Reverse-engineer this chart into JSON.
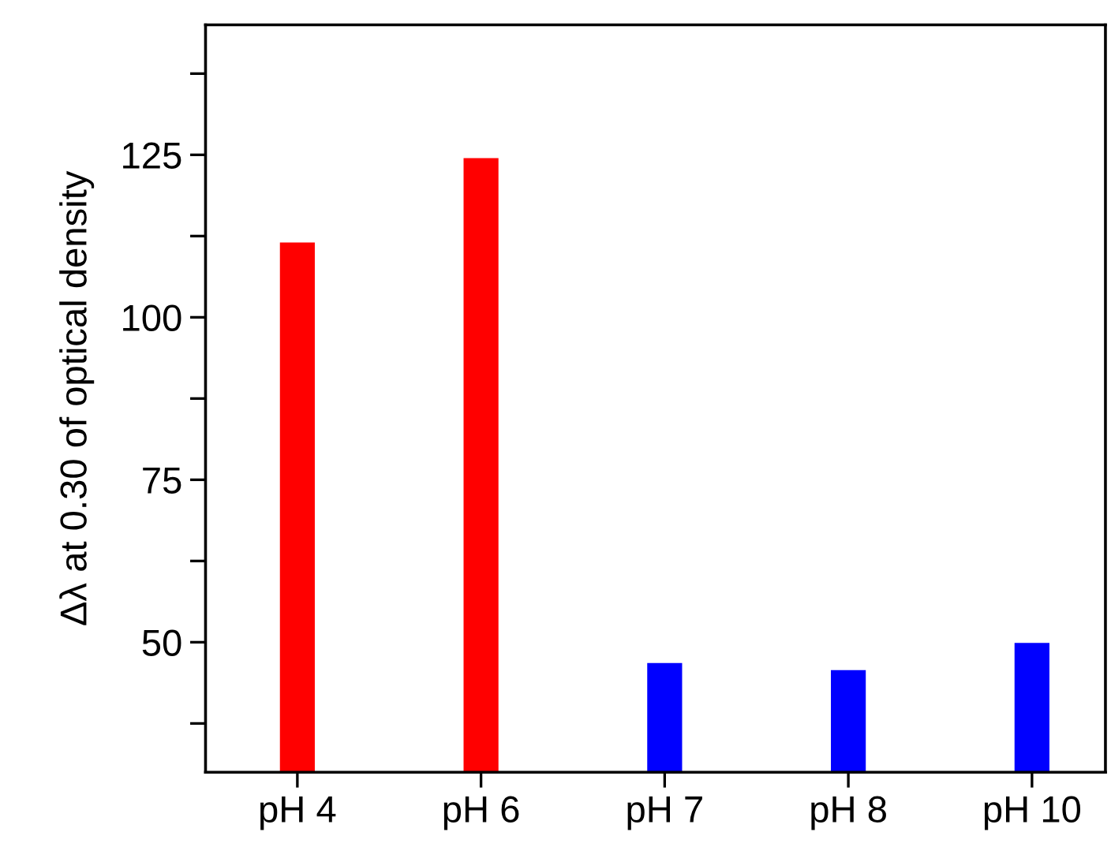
{
  "chart_data": {
    "type": "bar",
    "ylabel": "Δλ at 0.30 of optical density",
    "categories": [
      "pH 4",
      "pH 6",
      "pH 7",
      "pH 8",
      "pH 10"
    ],
    "values": [
      111.5,
      124.5,
      46.8,
      45.7,
      49.9
    ],
    "colors": [
      "#ff0000",
      "#ff0000",
      "#0000ff",
      "#0000ff",
      "#0000ff"
    ],
    "ylim": [
      30,
      145
    ],
    "yticks": [
      {
        "value": 37.5,
        "label": null
      },
      50,
      {
        "value": 62.5,
        "label": null
      },
      75,
      {
        "value": 87.5,
        "label": null
      },
      100,
      {
        "value": 112.5,
        "label": null
      },
      125,
      {
        "value": 137.5,
        "label": null
      }
    ],
    "grid": false
  }
}
